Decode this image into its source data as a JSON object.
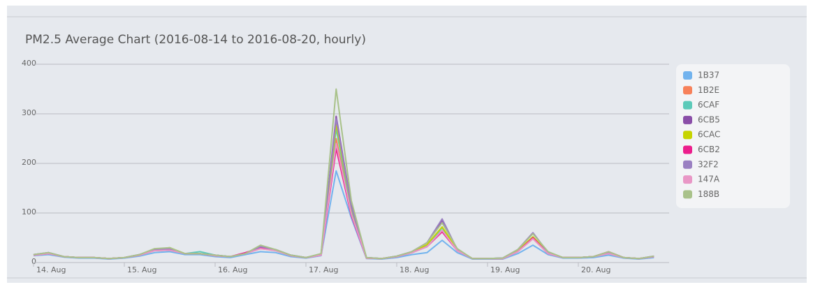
{
  "chart_data": {
    "type": "line",
    "title": "PM2.5 Average Chart (2016-08-14 to 2016-08-20, hourly)",
    "x": [
      0,
      4,
      8,
      12,
      16,
      20,
      24,
      28,
      32,
      36,
      40,
      44,
      48,
      52,
      56,
      60,
      64,
      68,
      72,
      76,
      80,
      84,
      88,
      92,
      96,
      100,
      104,
      108,
      112,
      116,
      120,
      124,
      128,
      132,
      136,
      140,
      144,
      148,
      152,
      156,
      160,
      164
    ],
    "xlim": [
      0,
      168
    ],
    "xticks": [
      {
        "value": 0,
        "label": "14. Aug"
      },
      {
        "value": 24,
        "label": "15. Aug"
      },
      {
        "value": 48,
        "label": "16. Aug"
      },
      {
        "value": 72,
        "label": "17. Aug"
      },
      {
        "value": 96,
        "label": "18. Aug"
      },
      {
        "value": 120,
        "label": "19. Aug"
      },
      {
        "value": 144,
        "label": "20. Aug"
      }
    ],
    "ylim": [
      0,
      400
    ],
    "yticks": [
      0,
      100,
      200,
      300,
      400
    ],
    "grid": true,
    "legend": "right",
    "series": [
      {
        "name": "1B37",
        "color": "#72b3ee",
        "values": [
          14,
          16,
          11,
          9,
          9,
          7,
          9,
          13,
          20,
          22,
          16,
          16,
          12,
          10,
          16,
          22,
          20,
          12,
          9,
          14,
          185,
          90,
          8,
          7,
          10,
          16,
          20,
          45,
          20,
          7,
          7,
          7,
          18,
          35,
          16,
          9,
          9,
          10,
          15,
          9,
          7,
          10
        ]
      },
      {
        "name": "1B2E",
        "color": "#f7815a",
        "values": [
          15,
          18,
          12,
          10,
          10,
          8,
          10,
          15,
          24,
          25,
          18,
          18,
          14,
          12,
          18,
          28,
          24,
          14,
          10,
          15,
          250,
          100,
          9,
          8,
          12,
          20,
          32,
          65,
          24,
          8,
          8,
          8,
          22,
          48,
          18,
          10,
          10,
          12,
          18,
          10,
          8,
          12
        ]
      },
      {
        "name": "6CAF",
        "color": "#5ccab9",
        "values": [
          16,
          19,
          12,
          10,
          10,
          8,
          10,
          15,
          25,
          26,
          18,
          22,
          15,
          12,
          18,
          30,
          24,
          15,
          10,
          16,
          270,
          105,
          9,
          8,
          12,
          20,
          33,
          70,
          25,
          8,
          8,
          9,
          24,
          50,
          19,
          10,
          10,
          12,
          19,
          10,
          8,
          12
        ]
      },
      {
        "name": "6CB5",
        "color": "#8a4ea8",
        "values": [
          16,
          20,
          12,
          10,
          10,
          8,
          10,
          16,
          26,
          27,
          18,
          18,
          15,
          12,
          18,
          32,
          26,
          15,
          10,
          17,
          295,
          115,
          10,
          8,
          13,
          22,
          40,
          85,
          26,
          8,
          8,
          9,
          26,
          60,
          20,
          10,
          10,
          12,
          20,
          10,
          8,
          13
        ]
      },
      {
        "name": "6CAC",
        "color": "#c6d400",
        "values": [
          15,
          19,
          12,
          10,
          10,
          8,
          10,
          15,
          26,
          30,
          18,
          18,
          14,
          12,
          18,
          32,
          25,
          14,
          10,
          16,
          280,
          110,
          9,
          8,
          12,
          21,
          36,
          72,
          26,
          8,
          8,
          8,
          24,
          52,
          20,
          10,
          10,
          12,
          20,
          10,
          8,
          12
        ]
      },
      {
        "name": "6CB2",
        "color": "#ec1e8c",
        "values": [
          15,
          18,
          12,
          10,
          10,
          8,
          10,
          15,
          25,
          26,
          18,
          18,
          14,
          12,
          20,
          30,
          25,
          14,
          10,
          15,
          230,
          95,
          9,
          8,
          12,
          20,
          32,
          62,
          24,
          8,
          8,
          8,
          22,
          50,
          18,
          10,
          10,
          12,
          22,
          10,
          8,
          12
        ]
      },
      {
        "name": "32F2",
        "color": "#9a80c2",
        "values": [
          16,
          20,
          12,
          10,
          10,
          8,
          10,
          16,
          26,
          28,
          18,
          18,
          15,
          12,
          18,
          32,
          26,
          15,
          10,
          17,
          290,
          112,
          10,
          8,
          13,
          22,
          40,
          88,
          26,
          8,
          8,
          9,
          26,
          60,
          20,
          10,
          10,
          12,
          20,
          10,
          8,
          13
        ]
      },
      {
        "name": "147A",
        "color": "#e997c6",
        "values": [
          15,
          18,
          12,
          10,
          10,
          8,
          10,
          15,
          24,
          25,
          18,
          18,
          14,
          12,
          18,
          28,
          24,
          14,
          10,
          15,
          240,
          98,
          9,
          8,
          12,
          20,
          32,
          65,
          24,
          8,
          8,
          8,
          22,
          48,
          18,
          10,
          10,
          12,
          18,
          10,
          8,
          12
        ]
      },
      {
        "name": "188B",
        "color": "#a9c28a",
        "values": [
          16,
          20,
          12,
          10,
          10,
          8,
          10,
          16,
          28,
          30,
          18,
          18,
          15,
          12,
          18,
          35,
          26,
          15,
          10,
          18,
          350,
          125,
          10,
          8,
          13,
          22,
          40,
          80,
          28,
          8,
          8,
          9,
          26,
          58,
          22,
          10,
          10,
          12,
          22,
          10,
          8,
          13
        ]
      }
    ]
  }
}
